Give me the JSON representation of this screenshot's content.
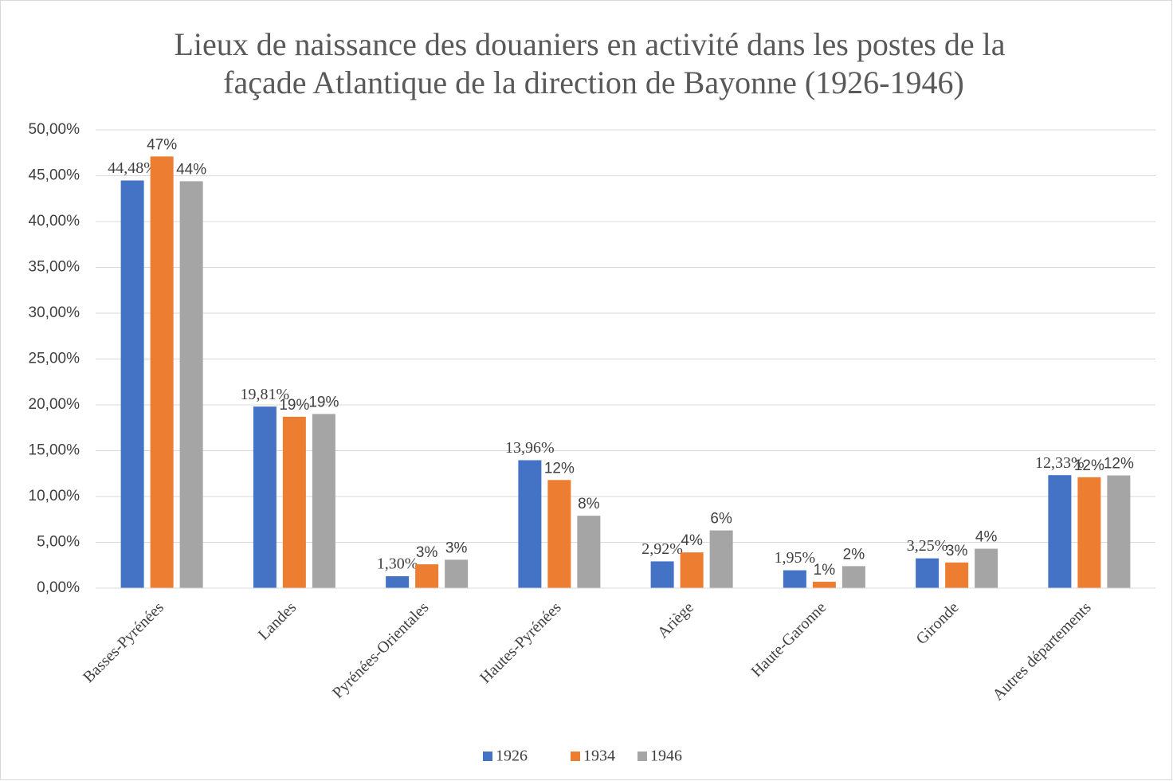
{
  "chart_data": {
    "type": "bar",
    "title": [
      "Lieux de naissance des douaniers en activité dans les postes de la",
      "façade Atlantique de la direction de Bayonne (1926-1946)"
    ],
    "categories": [
      "Basses-Pyrénées",
      "Landes",
      "Pyrénées-Orientales",
      "Hautes-Pyrénées",
      "Ariège",
      "Haute-Garonne",
      "Gironde",
      "Autres départements"
    ],
    "series": [
      {
        "name": "1926",
        "color": "#4472c4",
        "values": [
          44.48,
          19.81,
          1.3,
          13.96,
          2.92,
          1.95,
          3.25,
          12.33
        ],
        "value_labels": [
          "44,48%",
          "19,81%",
          "1,30%",
          "13,96%",
          "2,92%",
          "1,95%",
          "3,25%",
          "12,33%"
        ]
      },
      {
        "name": "1934",
        "color": "#ed7d31",
        "values": [
          47.1,
          18.7,
          2.6,
          11.8,
          3.9,
          0.7,
          2.8,
          12.1
        ],
        "value_labels": [
          "47%",
          "19%",
          "3%",
          "12%",
          "4%",
          "1%",
          "3%",
          "12%"
        ]
      },
      {
        "name": "1946",
        "color": "#a5a5a5",
        "values": [
          44.4,
          19.0,
          3.1,
          7.9,
          6.3,
          2.4,
          4.3,
          12.3
        ],
        "value_labels": [
          "44%",
          "19%",
          "3%",
          "8%",
          "6%",
          "2%",
          "4%",
          "12%"
        ]
      }
    ],
    "ylim": [
      0,
      50
    ],
    "yticks": [
      {
        "value": 0,
        "label": "0,00%"
      },
      {
        "value": 5,
        "label": "5,00%"
      },
      {
        "value": 10,
        "label": "10,00%"
      },
      {
        "value": 15,
        "label": "15,00%"
      },
      {
        "value": 20,
        "label": "20,00%"
      },
      {
        "value": 25,
        "label": "25,00%"
      },
      {
        "value": 30,
        "label": "30,00%"
      },
      {
        "value": 35,
        "label": "35,00%"
      },
      {
        "value": 40,
        "label": "40,00%"
      },
      {
        "value": 45,
        "label": "45,00%"
      },
      {
        "value": 50,
        "label": "50,00%"
      }
    ],
    "grid": true,
    "legend": "bottom"
  }
}
